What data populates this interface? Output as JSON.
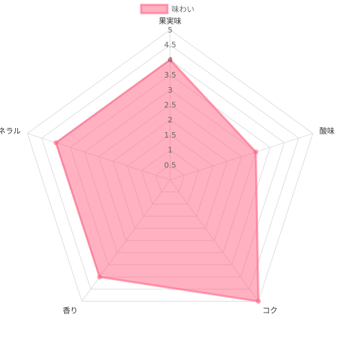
{
  "chart_data": {
    "type": "radar",
    "categories": [
      "果実味",
      "酸味",
      "コク",
      "香り",
      "ミネラル"
    ],
    "series": [
      {
        "name": "味わい",
        "color": "#ff6384",
        "values": [
          4,
          3,
          5,
          4,
          4
        ]
      }
    ],
    "rlim": [
      0,
      5
    ],
    "rticks": [
      0.5,
      1,
      1.5,
      2,
      2.5,
      3,
      3.5,
      4,
      4.5,
      5
    ],
    "grid": true,
    "legend": "top"
  }
}
